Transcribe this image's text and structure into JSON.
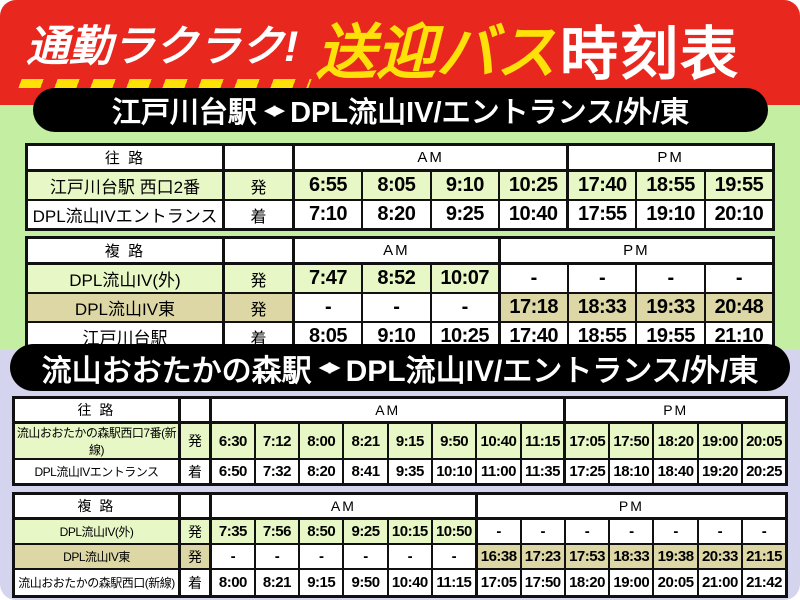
{
  "header": {
    "catch_left": "通勤ラクラク!",
    "catch_middle": "送迎バス",
    "catch_right": "時刻表"
  },
  "banners": [
    {
      "station": "江戸川台駅",
      "arrows": "◀▶",
      "destination": "DPL流山IV/エントランス/外/東"
    },
    {
      "station": "流山おおたかの森駅",
      "arrows": "◀▶",
      "destination": "DPL流山IV/エントランス/外/東"
    }
  ],
  "colors": {
    "red": "#e8281e",
    "yellow": "#ffe10a",
    "green": "#c4efa2",
    "lavender": "#d4d4ee",
    "cellgreen": "#e8f7c6",
    "cellbeige": "#ddd7a6"
  },
  "tables": [
    {
      "direction_label": "往 路",
      "am_label": "AM",
      "pm_label": "PM",
      "am_cols": 4,
      "pm_cols": 3,
      "rows": [
        {
          "label": "江戸川台駅 西口2番",
          "type": "発",
          "label_style": "green",
          "am_style": "green",
          "pm_style": "green",
          "am": [
            "6:55",
            "8:05",
            "9:10",
            "10:25"
          ],
          "pm": [
            "17:40",
            "18:55",
            "19:55"
          ]
        },
        {
          "label": "DPL流山IVエントランス",
          "type": "着",
          "label_style": "white",
          "am_style": "white",
          "pm_style": "white",
          "am": [
            "7:10",
            "8:20",
            "9:25",
            "10:40"
          ],
          "pm": [
            "17:55",
            "19:10",
            "20:10"
          ]
        }
      ]
    },
    {
      "direction_label": "複 路",
      "am_label": "AM",
      "pm_label": "PM",
      "am_cols": 3,
      "pm_cols": 4,
      "rows": [
        {
          "label": "DPL流山IV(外)",
          "type": "発",
          "label_style": "green",
          "am_style": "green",
          "pm_style": "white",
          "am": [
            "7:47",
            "8:52",
            "10:07"
          ],
          "pm": [
            "-",
            "-",
            "-",
            "-"
          ]
        },
        {
          "label": "DPL流山IV東",
          "type": "発",
          "label_style": "beige",
          "am_style": "white",
          "pm_style": "beige",
          "am": [
            "-",
            "-",
            "-"
          ],
          "pm": [
            "17:18",
            "18:33",
            "19:33",
            "20:48"
          ]
        },
        {
          "label": "江戸川台駅",
          "type": "着",
          "label_style": "white",
          "am_style": "white",
          "pm_style": "white",
          "am": [
            "8:05",
            "9:10",
            "10:25"
          ],
          "pm": [
            "17:40",
            "18:55",
            "19:55",
            "21:10"
          ]
        }
      ]
    },
    {
      "direction_label": "往 路",
      "am_label": "AM",
      "pm_label": "PM",
      "am_cols": 8,
      "pm_cols": 5,
      "rows": [
        {
          "label": "流山おおたかの森駅西口7番(新線)",
          "type": "発",
          "label_style": "green",
          "am_style": "green",
          "pm_style": "green",
          "am": [
            "6:30",
            "7:12",
            "8:00",
            "8:21",
            "9:15",
            "9:50",
            "10:40",
            "11:15"
          ],
          "pm": [
            "17:05",
            "17:50",
            "18:20",
            "19:00",
            "20:05"
          ]
        },
        {
          "label": "DPL流山IVエントランス",
          "type": "着",
          "label_style": "white",
          "am_style": "white",
          "pm_style": "white",
          "am": [
            "6:50",
            "7:32",
            "8:20",
            "8:41",
            "9:35",
            "10:10",
            "11:00",
            "11:35"
          ],
          "pm": [
            "17:25",
            "18:10",
            "18:40",
            "19:20",
            "20:25"
          ]
        }
      ]
    },
    {
      "direction_label": "複 路",
      "am_label": "AM",
      "pm_label": "PM",
      "am_cols": 6,
      "pm_cols": 7,
      "rows": [
        {
          "label": "DPL流山IV(外)",
          "type": "発",
          "label_style": "green",
          "am_style": "green",
          "pm_style": "white",
          "am": [
            "7:35",
            "7:56",
            "8:50",
            "9:25",
            "10:15",
            "10:50"
          ],
          "pm": [
            "-",
            "-",
            "-",
            "-",
            "-",
            "-",
            "-"
          ]
        },
        {
          "label": "DPL流山IV東",
          "type": "発",
          "label_style": "beige",
          "am_style": "white",
          "pm_style": "beige",
          "am": [
            "-",
            "-",
            "-",
            "-",
            "-",
            "-"
          ],
          "pm": [
            "16:38",
            "17:23",
            "17:53",
            "18:33",
            "19:38",
            "20:33",
            "21:15"
          ]
        },
        {
          "label": "流山おおたかの森駅西口(新線)",
          "type": "着",
          "label_style": "white",
          "am_style": "white",
          "pm_style": "white",
          "am": [
            "8:00",
            "8:21",
            "9:15",
            "9:50",
            "10:40",
            "11:15"
          ],
          "pm": [
            "17:05",
            "17:50",
            "18:20",
            "19:00",
            "20:05",
            "21:00",
            "21:42"
          ]
        }
      ]
    }
  ]
}
